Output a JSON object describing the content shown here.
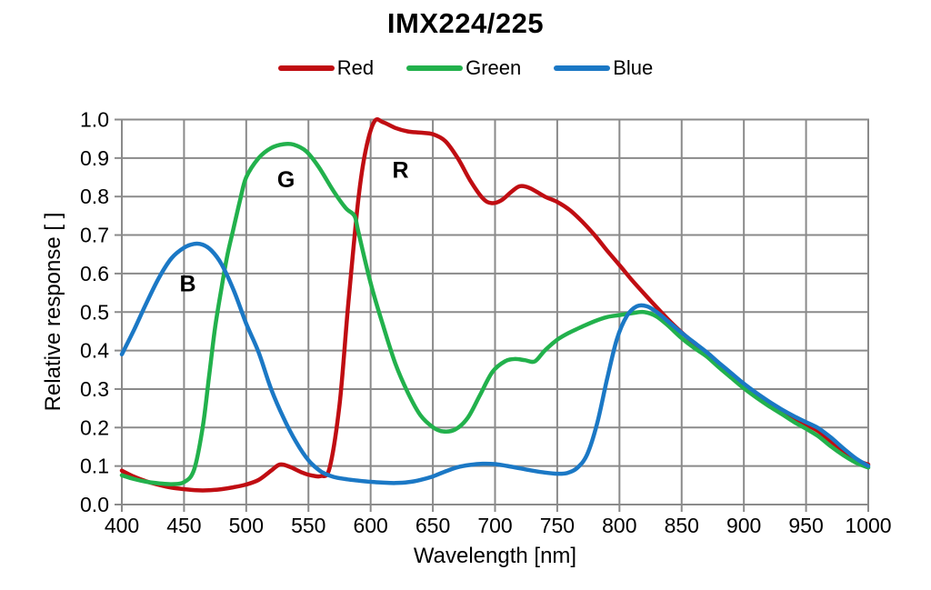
{
  "chart_data": {
    "type": "line",
    "title": "IMX224/225",
    "xlabel": "Wavelength [nm]",
    "ylabel": "Relative response [ ]",
    "xlim": [
      400,
      1000
    ],
    "ylim": [
      0.0,
      1.0
    ],
    "x_ticks": [
      400,
      450,
      500,
      550,
      600,
      650,
      700,
      750,
      800,
      850,
      900,
      950,
      1000
    ],
    "y_ticks": [
      0.0,
      0.1,
      0.2,
      0.3,
      0.4,
      0.5,
      0.6,
      0.7,
      0.8,
      0.9,
      1.0
    ],
    "grid": true,
    "legend_position": "top-center",
    "colors": {
      "grid": "#8A8A8A",
      "axis": "#8A8A8A",
      "text": "#000000",
      "background": "#FFFFFF"
    },
    "series": [
      {
        "name": "Red",
        "color": "#C00D12",
        "annotation": {
          "label": "R",
          "x": 624,
          "y": 0.87
        },
        "points": [
          [
            400,
            0.088
          ],
          [
            410,
            0.072
          ],
          [
            420,
            0.06
          ],
          [
            430,
            0.051
          ],
          [
            440,
            0.044
          ],
          [
            450,
            0.04
          ],
          [
            460,
            0.037
          ],
          [
            470,
            0.037
          ],
          [
            480,
            0.04
          ],
          [
            490,
            0.045
          ],
          [
            500,
            0.052
          ],
          [
            510,
            0.064
          ],
          [
            520,
            0.088
          ],
          [
            527,
            0.104
          ],
          [
            535,
            0.098
          ],
          [
            545,
            0.083
          ],
          [
            552,
            0.076
          ],
          [
            560,
            0.074
          ],
          [
            567,
            0.095
          ],
          [
            575,
            0.26
          ],
          [
            582,
            0.52
          ],
          [
            590,
            0.79
          ],
          [
            596,
            0.92
          ],
          [
            603,
            0.995
          ],
          [
            610,
            0.993
          ],
          [
            620,
            0.978
          ],
          [
            630,
            0.969
          ],
          [
            640,
            0.966
          ],
          [
            650,
            0.962
          ],
          [
            660,
            0.944
          ],
          [
            670,
            0.9
          ],
          [
            680,
            0.842
          ],
          [
            690,
            0.796
          ],
          [
            697,
            0.783
          ],
          [
            705,
            0.79
          ],
          [
            713,
            0.812
          ],
          [
            720,
            0.827
          ],
          [
            728,
            0.822
          ],
          [
            740,
            0.8
          ],
          [
            750,
            0.786
          ],
          [
            760,
            0.765
          ],
          [
            770,
            0.735
          ],
          [
            780,
            0.7
          ],
          [
            790,
            0.66
          ],
          [
            800,
            0.622
          ],
          [
            810,
            0.583
          ],
          [
            820,
            0.547
          ],
          [
            830,
            0.512
          ],
          [
            840,
            0.478
          ],
          [
            850,
            0.447
          ],
          [
            860,
            0.419
          ],
          [
            870,
            0.394
          ],
          [
            880,
            0.365
          ],
          [
            890,
            0.337
          ],
          [
            900,
            0.31
          ],
          [
            910,
            0.285
          ],
          [
            920,
            0.263
          ],
          [
            930,
            0.243
          ],
          [
            940,
            0.224
          ],
          [
            950,
            0.208
          ],
          [
            960,
            0.19
          ],
          [
            970,
            0.164
          ],
          [
            980,
            0.138
          ],
          [
            990,
            0.116
          ],
          [
            1000,
            0.104
          ]
        ]
      },
      {
        "name": "Green",
        "color": "#22B14C",
        "annotation": {
          "label": "G",
          "x": 532,
          "y": 0.845
        },
        "points": [
          [
            400,
            0.076
          ],
          [
            410,
            0.066
          ],
          [
            420,
            0.059
          ],
          [
            430,
            0.055
          ],
          [
            440,
            0.053
          ],
          [
            450,
            0.058
          ],
          [
            458,
            0.09
          ],
          [
            465,
            0.2
          ],
          [
            470,
            0.33
          ],
          [
            475,
            0.46
          ],
          [
            480,
            0.56
          ],
          [
            485,
            0.65
          ],
          [
            490,
            0.72
          ],
          [
            495,
            0.79
          ],
          [
            500,
            0.85
          ],
          [
            510,
            0.9
          ],
          [
            520,
            0.926
          ],
          [
            530,
            0.936
          ],
          [
            538,
            0.935
          ],
          [
            548,
            0.918
          ],
          [
            558,
            0.878
          ],
          [
            570,
            0.815
          ],
          [
            580,
            0.77
          ],
          [
            587,
            0.75
          ],
          [
            590,
            0.71
          ],
          [
            600,
            0.575
          ],
          [
            610,
            0.465
          ],
          [
            620,
            0.365
          ],
          [
            630,
            0.29
          ],
          [
            640,
            0.232
          ],
          [
            650,
            0.201
          ],
          [
            658,
            0.19
          ],
          [
            668,
            0.195
          ],
          [
            678,
            0.225
          ],
          [
            688,
            0.285
          ],
          [
            698,
            0.345
          ],
          [
            708,
            0.372
          ],
          [
            716,
            0.378
          ],
          [
            724,
            0.375
          ],
          [
            732,
            0.372
          ],
          [
            740,
            0.4
          ],
          [
            750,
            0.428
          ],
          [
            760,
            0.447
          ],
          [
            770,
            0.462
          ],
          [
            780,
            0.476
          ],
          [
            790,
            0.487
          ],
          [
            800,
            0.492
          ],
          [
            810,
            0.497
          ],
          [
            820,
            0.5
          ],
          [
            830,
            0.488
          ],
          [
            840,
            0.462
          ],
          [
            850,
            0.432
          ],
          [
            860,
            0.407
          ],
          [
            870,
            0.385
          ],
          [
            880,
            0.356
          ],
          [
            890,
            0.329
          ],
          [
            900,
            0.302
          ],
          [
            910,
            0.278
          ],
          [
            920,
            0.256
          ],
          [
            930,
            0.236
          ],
          [
            940,
            0.215
          ],
          [
            950,
            0.197
          ],
          [
            960,
            0.177
          ],
          [
            970,
            0.151
          ],
          [
            980,
            0.128
          ],
          [
            990,
            0.109
          ],
          [
            1000,
            0.096
          ]
        ]
      },
      {
        "name": "Blue",
        "color": "#1B78C5",
        "annotation": {
          "label": "B",
          "x": 453,
          "y": 0.575
        },
        "points": [
          [
            400,
            0.39
          ],
          [
            410,
            0.455
          ],
          [
            420,
            0.525
          ],
          [
            430,
            0.59
          ],
          [
            440,
            0.64
          ],
          [
            450,
            0.667
          ],
          [
            458,
            0.677
          ],
          [
            465,
            0.675
          ],
          [
            472,
            0.66
          ],
          [
            480,
            0.625
          ],
          [
            490,
            0.556
          ],
          [
            500,
            0.47
          ],
          [
            510,
            0.395
          ],
          [
            520,
            0.3
          ],
          [
            530,
            0.225
          ],
          [
            540,
            0.163
          ],
          [
            550,
            0.115
          ],
          [
            560,
            0.086
          ],
          [
            570,
            0.072
          ],
          [
            580,
            0.066
          ],
          [
            590,
            0.062
          ],
          [
            600,
            0.059
          ],
          [
            610,
            0.057
          ],
          [
            620,
            0.056
          ],
          [
            630,
            0.058
          ],
          [
            640,
            0.064
          ],
          [
            650,
            0.073
          ],
          [
            660,
            0.086
          ],
          [
            670,
            0.097
          ],
          [
            680,
            0.103
          ],
          [
            690,
            0.106
          ],
          [
            700,
            0.105
          ],
          [
            710,
            0.1
          ],
          [
            720,
            0.094
          ],
          [
            730,
            0.088
          ],
          [
            740,
            0.083
          ],
          [
            750,
            0.08
          ],
          [
            758,
            0.082
          ],
          [
            766,
            0.095
          ],
          [
            774,
            0.13
          ],
          [
            782,
            0.21
          ],
          [
            790,
            0.325
          ],
          [
            798,
            0.43
          ],
          [
            806,
            0.49
          ],
          [
            814,
            0.515
          ],
          [
            822,
            0.515
          ],
          [
            830,
            0.5
          ],
          [
            840,
            0.473
          ],
          [
            850,
            0.446
          ],
          [
            860,
            0.421
          ],
          [
            870,
            0.396
          ],
          [
            880,
            0.368
          ],
          [
            890,
            0.341
          ],
          [
            900,
            0.314
          ],
          [
            910,
            0.29
          ],
          [
            920,
            0.268
          ],
          [
            930,
            0.248
          ],
          [
            940,
            0.23
          ],
          [
            950,
            0.214
          ],
          [
            960,
            0.198
          ],
          [
            970,
            0.174
          ],
          [
            980,
            0.146
          ],
          [
            990,
            0.12
          ],
          [
            1000,
            0.1
          ]
        ]
      }
    ]
  }
}
